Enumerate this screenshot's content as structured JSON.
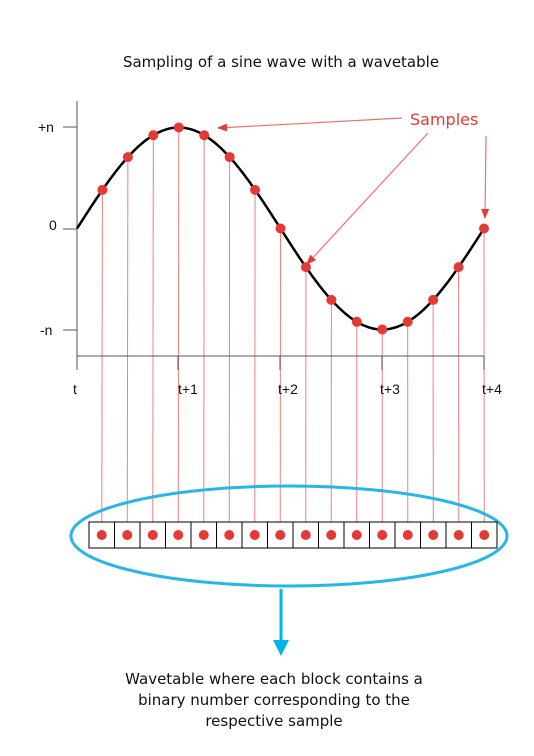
{
  "title": "Sampling of a sine wave with a wavetable",
  "y_axis": {
    "top_label": "+n",
    "zero_label": "0",
    "bottom_label": "-n"
  },
  "x_axis": {
    "tick_labels": [
      "t",
      "t+1",
      "t+2",
      "t+3",
      "t+4"
    ]
  },
  "annotation": {
    "label": "Samples"
  },
  "wavetable": {
    "block_count": 16
  },
  "caption": {
    "lines": [
      "Wavetable where each block contains a",
      "binary number corresponding to the",
      "respective sample"
    ]
  },
  "colors": {
    "sample_dot": "#e53935",
    "guide_line": "#f08080",
    "annotation": "#e53935",
    "ellipse": "#29b6e6",
    "arrow": "#00b4e6",
    "curve": "#000000"
  },
  "icons": [
    "down-arrow-icon"
  ]
}
